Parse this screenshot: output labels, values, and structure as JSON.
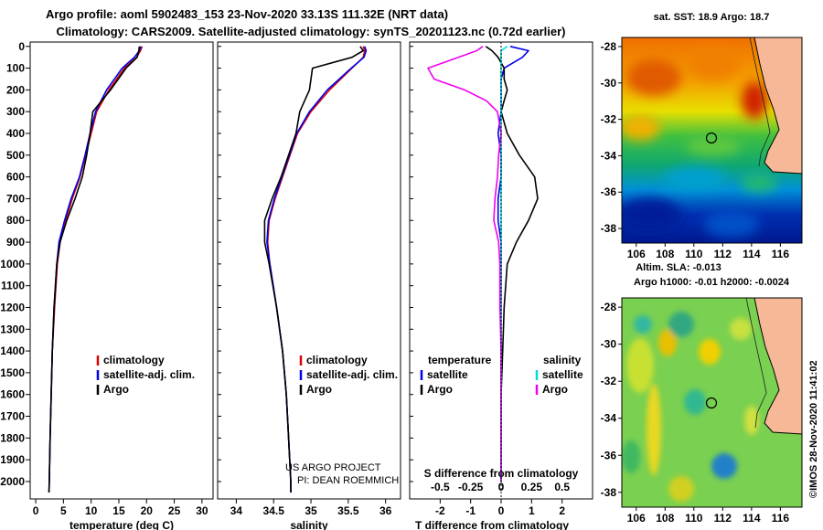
{
  "title_line1": "Argo profile: aoml 5902483_153 23-Nov-2020 33.13S 111.32E (NRT data)",
  "title_line2": "Climatology: CARS2009. Satellite-adjusted climatology: synTS_20201123.nc (0.72d earlier)",
  "right_top_title": "sat. SST: 18.9 Argo: 18.7",
  "right_mid_title1": "Altim. SLA: -0.013",
  "right_mid_title2": "Argo h1000: -0.01 h2000: -0.0024",
  "timestamp": "©IMOS 28-Nov-2020 11:41:02",
  "colors": {
    "climatology": "#dd0000",
    "satellite": "#0000ee",
    "argo": "#000000",
    "cyan": "#00dddd",
    "magenta": "#ee00ee"
  },
  "chart_data": [
    {
      "type": "line",
      "name": "temperature-profile",
      "xlabel": "temperature (deg C)",
      "ylim": [
        2080,
        -20
      ],
      "xlim": [
        -1,
        32
      ],
      "xticks": [
        "0",
        "5",
        "10",
        "15",
        "20",
        "25",
        "30"
      ],
      "yticks": [
        "0",
        "100",
        "200",
        "300",
        "400",
        "500",
        "600",
        "700",
        "800",
        "900",
        "1000",
        "1100",
        "1200",
        "1300",
        "1400",
        "1500",
        "1600",
        "1700",
        "1800",
        "1900",
        "2000"
      ],
      "depth": [
        0,
        20,
        50,
        100,
        200,
        300,
        400,
        500,
        600,
        700,
        800,
        900,
        1000,
        1200,
        1400,
        1600,
        1800,
        2000,
        2050
      ],
      "series": [
        {
          "name": "climatology",
          "color": "#dd0000",
          "values": [
            19.2,
            18.9,
            18.2,
            16.0,
            13.2,
            11.0,
            10.0,
            9.0,
            8.0,
            6.6,
            5.4,
            4.4,
            3.9,
            3.4,
            3.0,
            2.8,
            2.6,
            2.45,
            2.4
          ]
        },
        {
          "name": "satellite-adj. clim.",
          "color": "#0000ee",
          "values": [
            19.0,
            18.7,
            17.8,
            15.6,
            12.8,
            10.8,
            9.8,
            8.9,
            7.9,
            6.4,
            5.2,
            4.2,
            3.8,
            3.3,
            3.0,
            2.8,
            2.6,
            2.45,
            2.4
          ]
        },
        {
          "name": "Argo",
          "color": "#000000",
          "values": [
            18.7,
            18.6,
            18.3,
            16.3,
            13.5,
            10.3,
            9.8,
            9.2,
            8.4,
            7.1,
            5.6,
            4.4,
            3.8,
            3.3,
            3.0,
            2.8,
            2.6,
            2.45,
            2.4
          ]
        }
      ],
      "legend": [
        "climatology",
        "satellite-adj. clim.",
        "Argo"
      ]
    },
    {
      "type": "line",
      "name": "salinity-profile",
      "xlabel": "salinity",
      "xlim": [
        33.75,
        36.2
      ],
      "xticks": [
        "34",
        "34.5",
        "35",
        "35.5",
        "36"
      ],
      "depth": [
        0,
        20,
        50,
        100,
        200,
        300,
        400,
        500,
        600,
        700,
        800,
        900,
        1000,
        1200,
        1400,
        1600,
        1800,
        2000,
        2050
      ],
      "series": [
        {
          "name": "climatology",
          "color": "#dd0000",
          "values": [
            35.7,
            35.72,
            35.7,
            35.55,
            35.25,
            35.0,
            34.82,
            34.72,
            34.62,
            34.52,
            34.44,
            34.42,
            34.45,
            34.54,
            34.62,
            34.67,
            34.7,
            34.73,
            34.73
          ]
        },
        {
          "name": "satellite-adj. clim.",
          "color": "#0000ee",
          "values": [
            35.72,
            35.74,
            35.71,
            35.54,
            35.22,
            34.98,
            34.81,
            34.71,
            34.61,
            34.51,
            34.43,
            34.41,
            34.45,
            34.54,
            34.62,
            34.67,
            34.7,
            34.73,
            34.73
          ]
        },
        {
          "name": "Argo",
          "color": "#000000",
          "values": [
            35.66,
            35.7,
            35.55,
            35.02,
            34.98,
            34.85,
            34.8,
            34.7,
            34.6,
            34.48,
            34.38,
            34.38,
            34.44,
            34.54,
            34.62,
            34.67,
            34.7,
            34.73,
            34.73
          ]
        }
      ],
      "legend": [
        "climatology",
        "satellite-adj. clim.",
        "Argo"
      ],
      "credit1": "US ARGO PROJECT",
      "credit2": "PI: DEAN ROEMMICH"
    },
    {
      "type": "line",
      "name": "difference-profile",
      "xlabel": "T difference from climatology",
      "top_label": "S difference from climatology",
      "xlim": [
        -3,
        3
      ],
      "xticks": [
        "-2",
        "-1",
        "0",
        "1",
        "2"
      ],
      "sticks": [
        "-0.5",
        "-0.25",
        "0",
        "0.25",
        "0.5"
      ],
      "depth": [
        0,
        20,
        50,
        100,
        150,
        200,
        250,
        300,
        400,
        500,
        600,
        700,
        800,
        900,
        1000,
        1200,
        1400,
        1600,
        1800,
        2000
      ],
      "series": [
        {
          "name": "temperature satellite",
          "color": "#0000ee",
          "values": [
            0.3,
            0.9,
            0.7,
            0.1,
            0.0,
            0.0,
            0.0,
            0.0,
            -0.1,
            0.0,
            0.0,
            -0.1,
            -0.1,
            0.0,
            0.0,
            0.0,
            0.0,
            0.0,
            0.0,
            0.0
          ]
        },
        {
          "name": "temperature Argo",
          "color": "#000000",
          "values": [
            -0.5,
            -0.3,
            -0.1,
            0.1,
            0.1,
            0.2,
            0.1,
            0.0,
            0.2,
            0.6,
            1.1,
            1.2,
            0.9,
            0.5,
            0.2,
            0.1,
            0.05,
            0.0,
            0.0,
            0.0
          ]
        },
        {
          "name": "salinity satellite",
          "color": "#00dddd",
          "values": [
            0.05,
            0.0,
            0.0,
            0.0,
            0.0,
            0.0,
            0.0,
            0.0,
            0.0,
            0.0,
            0.0,
            0.0,
            0.0,
            0.0,
            0.0,
            0.0,
            0.0,
            0.0,
            0.0,
            0.0
          ]
        },
        {
          "name": "salinity Argo",
          "color": "#ee00ee",
          "values": [
            -0.15,
            -0.2,
            -0.35,
            -0.6,
            -0.55,
            -0.3,
            -0.12,
            -0.03,
            0.0,
            -0.02,
            -0.03,
            -0.05,
            -0.06,
            -0.02,
            -0.01,
            -0.01,
            0.0,
            0.0,
            0.0,
            0.0
          ]
        }
      ],
      "legend_left_title": "temperature",
      "legend_right_title": "salinity",
      "legend_left": [
        "satellite",
        "Argo"
      ],
      "legend_right": [
        "satellite",
        "Argo"
      ]
    },
    {
      "type": "heatmap",
      "name": "sst-map",
      "xticks": [
        "106",
        "108",
        "110",
        "112",
        "114",
        "116"
      ],
      "yticks": [
        "-28",
        "-30",
        "-32",
        "-34",
        "-36",
        "-38"
      ],
      "xlim": [
        105,
        117.5
      ],
      "ylim": [
        -38.8,
        -27.5
      ],
      "marker": {
        "lon": 111.32,
        "lat": -33.13
      }
    },
    {
      "type": "heatmap",
      "name": "sla-map",
      "xticks": [
        "106",
        "108",
        "110",
        "112",
        "114",
        "116"
      ],
      "yticks": [
        "-28",
        "-30",
        "-32",
        "-34",
        "-36",
        "-38"
      ],
      "xlim": [
        105,
        117.5
      ],
      "ylim": [
        -38.8,
        -27.5
      ],
      "marker": {
        "lon": 111.32,
        "lat": -33.13
      }
    }
  ]
}
